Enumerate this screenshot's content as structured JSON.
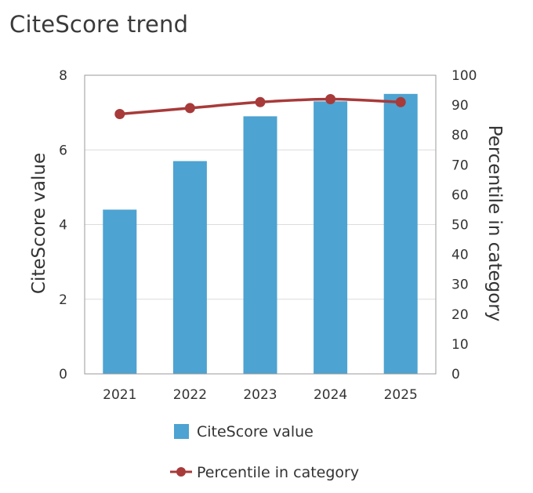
{
  "header": {
    "title": "CiteScore trend"
  },
  "colors": {
    "bar": "#4da3d1",
    "line": "#a83a3a",
    "grid": "#dcdcdc",
    "axis": "#999999"
  },
  "chart_data": {
    "type": "bar",
    "title": "CiteScore trend",
    "categories": [
      "2021",
      "2022",
      "2023",
      "2024",
      "2025"
    ],
    "series": [
      {
        "name": "CiteScore value",
        "type": "bar",
        "axis": "left",
        "values": [
          4.4,
          5.7,
          6.9,
          7.3,
          7.5
        ]
      },
      {
        "name": "Percentile in category",
        "type": "line",
        "axis": "right",
        "values": [
          87,
          89,
          91,
          92,
          91
        ]
      }
    ],
    "ylabel": "CiteScore value",
    "ylim": [
      0,
      8
    ],
    "yticks": [
      "0",
      "2",
      "4",
      "6",
      "8"
    ],
    "y2label": "Percentile in category",
    "y2lim": [
      0,
      100
    ],
    "y2ticks": [
      "0",
      "10",
      "20",
      "30",
      "40",
      "50",
      "60",
      "70",
      "80",
      "90",
      "100"
    ],
    "grid": true,
    "legend": "bottom"
  }
}
